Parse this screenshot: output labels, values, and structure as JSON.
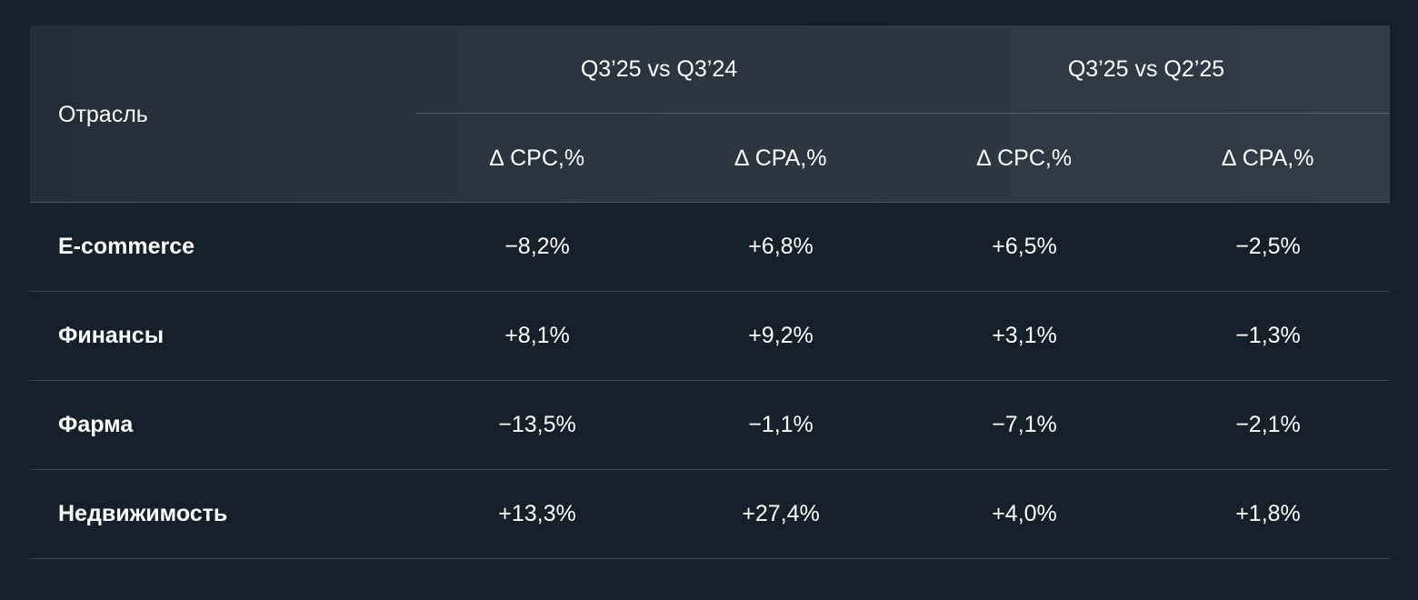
{
  "chart_data": {
    "type": "table",
    "header": {
      "industry": "Отрасль",
      "groups": [
        "Q3’25 vs Q3’24",
        "Q3’25 vs Q2’25"
      ],
      "metrics": [
        "∆ CPC,%",
        "∆ CPA,%",
        "∆ CPC,%",
        "∆ CPA,%"
      ]
    },
    "rows": [
      {
        "name": "E-commerce",
        "values": [
          "−8,2%",
          "+6,8%",
          "+6,5%",
          "−2,5%"
        ]
      },
      {
        "name": "Финансы",
        "values": [
          "+8,1%",
          "+9,2%",
          "+3,1%",
          "−1,3%"
        ]
      },
      {
        "name": "Фарма",
        "values": [
          "−13,5%",
          "−1,1%",
          "−7,1%",
          "−2,1%"
        ]
      },
      {
        "name": "Недвижимость",
        "values": [
          "+13,3%",
          "+27,4%",
          "+4,0%",
          "+1,8%"
        ]
      }
    ]
  }
}
